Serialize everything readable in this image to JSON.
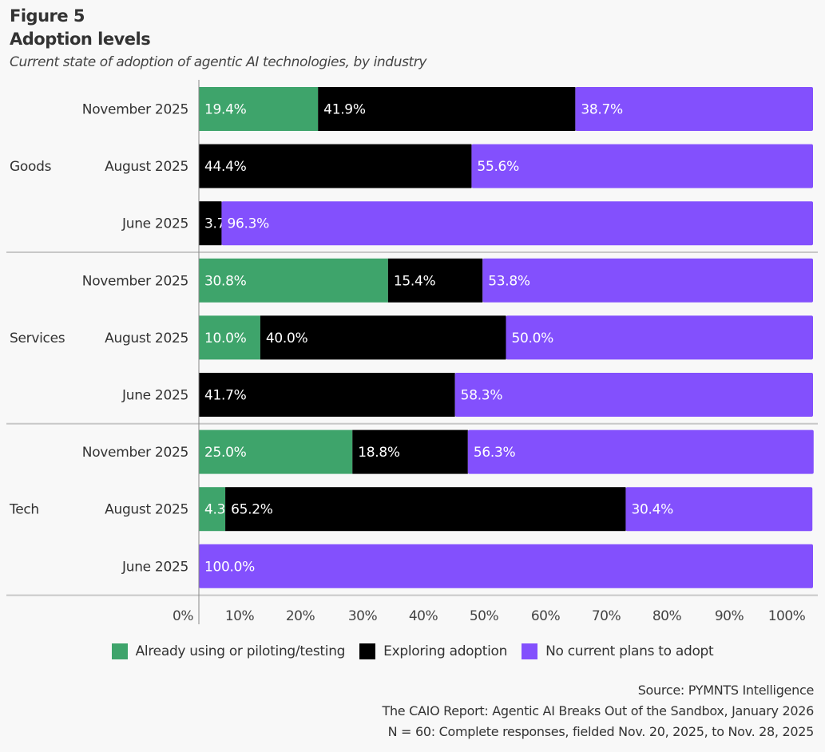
{
  "header": {
    "figure_label": "Figure 5",
    "title": "Adoption levels",
    "subtitle": "Current state of adoption of agentic AI technologies, by industry"
  },
  "legend": [
    {
      "label": "Already using or piloting/testing",
      "color": "#3ea46b"
    },
    {
      "label": "Exploring adoption",
      "color": "#000000"
    },
    {
      "label": "No current plans to adopt",
      "color": "#8350fd"
    }
  ],
  "source": {
    "line1": "Source: PYMNTS Intelligence",
    "line2": "The CAIO Report: Agentic AI Breaks Out of the Sandbox, January 2026",
    "line3": "N = 60: Complete responses, fielded Nov. 20, 2025, to Nov. 28, 2025"
  },
  "chart_data": {
    "type": "bar",
    "orientation": "horizontal-stacked",
    "title": "Adoption levels",
    "subtitle": "Current state of adoption of agentic AI technologies, by industry",
    "xlabel": "",
    "ylabel": "",
    "xlim": [
      0,
      100
    ],
    "x_ticks": [
      "0%",
      "10%",
      "20%",
      "30%",
      "40%",
      "50%",
      "60%",
      "70%",
      "80%",
      "90%",
      "100%"
    ],
    "legend_position": "bottom",
    "series_names": [
      "Already using or piloting/testing",
      "Exploring adoption",
      "No current plans to adopt"
    ],
    "series_colors": [
      "#3ea46b",
      "#000000",
      "#8350fd"
    ],
    "groups": [
      {
        "name": "Goods",
        "rows": [
          {
            "label": "November 2025",
            "values": [
              19.4,
              41.9,
              38.7
            ]
          },
          {
            "label": "August 2025",
            "values": [
              0,
              44.4,
              55.6
            ]
          },
          {
            "label": "June 2025",
            "values": [
              0,
              3.7,
              96.3
            ]
          }
        ]
      },
      {
        "name": "Services",
        "rows": [
          {
            "label": "November 2025",
            "values": [
              30.8,
              15.4,
              53.8
            ]
          },
          {
            "label": "August 2025",
            "values": [
              10.0,
              40.0,
              50.0
            ]
          },
          {
            "label": "June 2025",
            "values": [
              0,
              41.7,
              58.3
            ]
          }
        ]
      },
      {
        "name": "Tech",
        "rows": [
          {
            "label": "November 2025",
            "values": [
              25.0,
              18.8,
              56.3
            ]
          },
          {
            "label": "August 2025",
            "values": [
              4.3,
              65.2,
              30.4
            ]
          },
          {
            "label": "June 2025",
            "values": [
              0,
              0,
              100.0
            ]
          }
        ]
      }
    ]
  }
}
